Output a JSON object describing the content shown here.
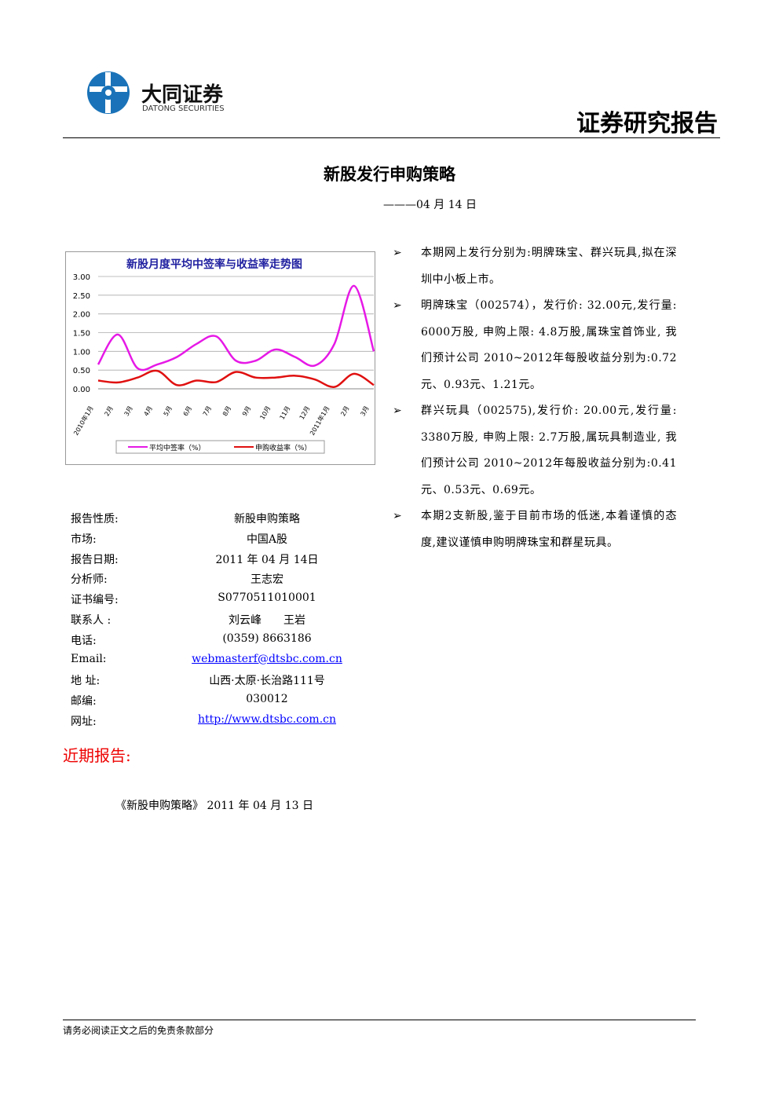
{
  "header": {
    "company_cn": "大同证券",
    "company_en": "DATONG SECURITIES",
    "report_type": "证券研究报告"
  },
  "title": "新股发行申购策略",
  "subtitle": "———04 月 14 日",
  "chart_data": {
    "type": "line",
    "title": "新股月度平均中签率与收益率走势图",
    "categories": [
      "2010年1月",
      "2月",
      "3月",
      "4月",
      "5月",
      "6月",
      "7月",
      "8月",
      "9月",
      "10月",
      "11月",
      "12月",
      "2011年1月",
      "2月",
      "3月"
    ],
    "series": [
      {
        "name": "平均中签率（%）",
        "color": "#e619e6",
        "values": [
          0.65,
          1.45,
          0.55,
          0.65,
          0.85,
          1.2,
          1.4,
          0.75,
          0.75,
          1.05,
          0.85,
          0.62,
          1.2,
          2.75,
          1.0
        ]
      },
      {
        "name": "申购收益率（%）",
        "color": "#e01010",
        "values": [
          0.22,
          0.17,
          0.3,
          0.48,
          0.1,
          0.22,
          0.18,
          0.45,
          0.3,
          0.3,
          0.35,
          0.25,
          0.05,
          0.4,
          0.1
        ]
      }
    ],
    "ylim": [
      0,
      3
    ],
    "yticks": [
      {
        "value": 0,
        "label": "0.00"
      },
      {
        "value": 0.5,
        "label": "0.50"
      },
      {
        "value": 1,
        "label": "1.00"
      },
      {
        "value": 1.5,
        "label": "1.50"
      },
      {
        "value": 2,
        "label": "2.00"
      },
      {
        "value": 2.5,
        "label": "2.50"
      },
      {
        "value": 3,
        "label": "3.00"
      }
    ],
    "grid": true,
    "legend": "bottom"
  },
  "info": {
    "rows": [
      [
        "报告性质:",
        "新股申购策略"
      ],
      [
        "市场:",
        "中国A股"
      ],
      [
        "报告日期:",
        "2011 年 04 月 14日"
      ],
      [
        "分析师:",
        "王志宏"
      ],
      [
        "证书编号:",
        "S0770511010001"
      ],
      [
        "联系人 :",
        "刘云峰　　王岩"
      ],
      [
        "电话:",
        "(0359) 8663186"
      ],
      [
        "Email:",
        "webmasterf@dtsbc.com.cn"
      ],
      [
        "地 址:",
        "山西·太原·长治路111号"
      ],
      [
        "邮编:",
        "030012"
      ],
      [
        "网址:",
        "http://www.dtsbc.com.cn"
      ]
    ]
  },
  "bullets": [
    "本期网上发行分别为:明牌珠宝、群兴玩具,拟在深圳中小板上市。",
    "明牌珠宝（002574），发行价: 32.00元,发行量: 6000万股, 申购上限: 4.8万股,属珠宝首饰业, 我们预计公司 2010~2012年每股收益分别为:0.72元、0.93元、1.21元。",
    "群兴玩具（002575),发行价: 20.00元,发行量: 3380万股, 申购上限: 2.7万股,属玩具制造业, 我们预计公司 2010~2012年每股收益分别为:0.41元、0.53元、0.69元。",
    "本期2支新股,鉴于目前市场的低迷,本着谨慎的态度,建议谨慎申购明牌珠宝和群星玩具。"
  ],
  "recent": {
    "heading": "近期报告:",
    "items": [
      "《新股申购策略》 2011 年 04 月 13 日"
    ]
  },
  "footer": "请务必阅读正文之后的免责条款部分"
}
